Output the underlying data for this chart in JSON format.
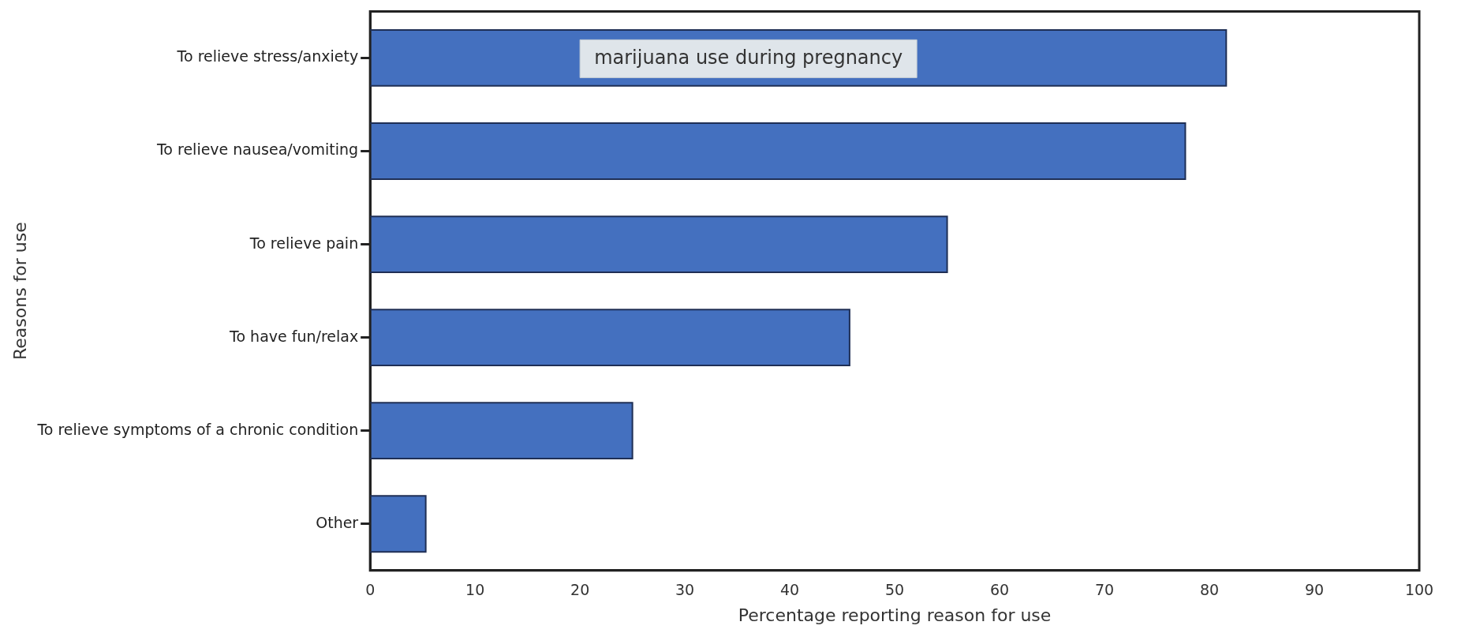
{
  "chart_data": {
    "type": "bar",
    "orientation": "horizontal",
    "xlabel": "Percentage reporting reason for use",
    "ylabel": "Reasons for use",
    "categories": [
      "To relieve stress/anxiety",
      "To relieve nausea/vomiting",
      "To relieve pain",
      "To have fun/relax",
      "To relieve symptoms of a chronic condition",
      "Other"
    ],
    "values": [
      81.6,
      77.7,
      55.0,
      45.7,
      25.0,
      5.3
    ],
    "color": "#4470bf",
    "xlim": [
      0,
      100
    ],
    "xticks": [
      0,
      10,
      20,
      30,
      40,
      50,
      60,
      70,
      80,
      90,
      100
    ],
    "grid": false,
    "annotations": [
      "marijuana use during pregnancy"
    ]
  }
}
